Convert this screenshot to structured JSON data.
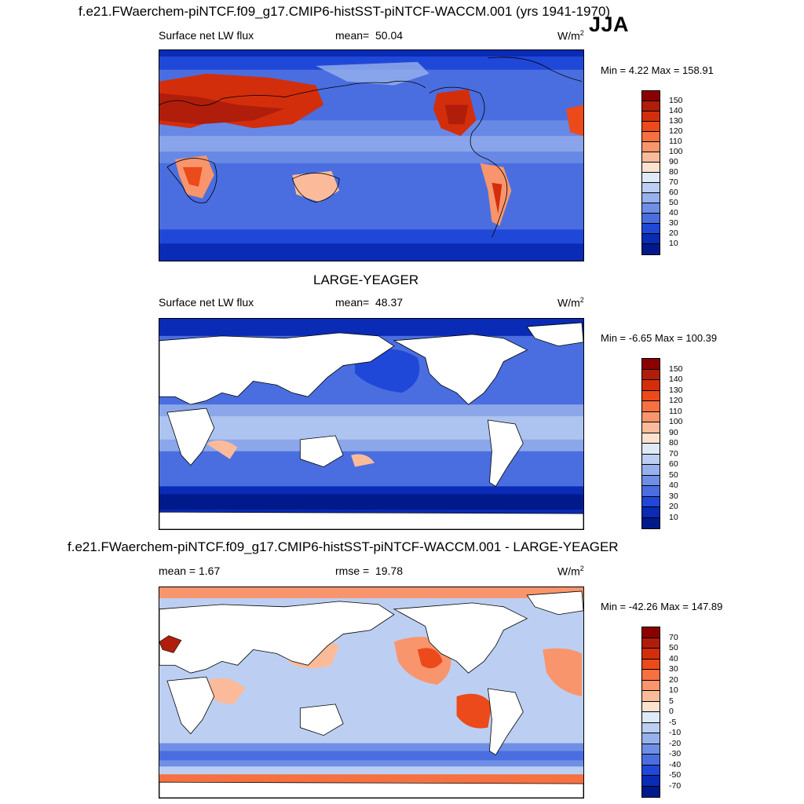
{
  "header": {
    "title_top": "f.e21.FWaerchem-piNTCF.f09_g17.CMIP6-histSST-piNTCF-WACCM.001 (yrs 1941-1970)",
    "season": "JJA",
    "title_mid": "LARGE-YEAGER",
    "title_bottom": "f.e21.FWaerchem-piNTCF.f09_g17.CMIP6-histSST-piNTCF-WACCM.001 - LARGE-YEAGER"
  },
  "panels": [
    {
      "id": "model",
      "variable": "Surface net LW flux",
      "stat_label": "mean=",
      "stat_value": "50.04",
      "units_base": "W/m",
      "units_exp": "2",
      "minmax": "Min =   4.22 Max = 158.91",
      "colorbar": {
        "levels": [
          "150",
          "140",
          "130",
          "120",
          "110",
          "100",
          "90",
          "80",
          "70",
          "60",
          "50",
          "40",
          "30",
          "20",
          "10"
        ],
        "colors": [
          "#8b0000",
          "#b01e0b",
          "#d32e0c",
          "#ec4a1a",
          "#f67040",
          "#f9956c",
          "#fbbb9b",
          "#fde2cf",
          "#dfeaf9",
          "#bccff2",
          "#97b1ec",
          "#6f8fe6",
          "#4a6edf",
          "#2048d8",
          "#0a2bb5",
          "#001a8c"
        ]
      },
      "map_style": "model"
    },
    {
      "id": "obs",
      "variable": "Surface net LW flux",
      "stat_label": "mean=",
      "stat_value": "48.37",
      "units_base": "W/m",
      "units_exp": "2",
      "minmax": "Min =  -6.65 Max = 100.39",
      "colorbar": {
        "levels": [
          "150",
          "140",
          "130",
          "120",
          "110",
          "100",
          "90",
          "80",
          "70",
          "60",
          "50",
          "40",
          "30",
          "20",
          "10"
        ],
        "colors": [
          "#8b0000",
          "#b01e0b",
          "#d32e0c",
          "#ec4a1a",
          "#f67040",
          "#f9956c",
          "#fbbb9b",
          "#fde2cf",
          "#dfeaf9",
          "#bccff2",
          "#97b1ec",
          "#6f8fe6",
          "#4a6edf",
          "#2048d8",
          "#0a2bb5",
          "#001a8c"
        ]
      },
      "map_style": "obs"
    },
    {
      "id": "diff",
      "variable": "mean =   1.67",
      "stat_label": "rmse =",
      "stat_value": "19.78",
      "units_base": "W/m",
      "units_exp": "2",
      "minmax": "Min = -42.26 Max = 147.89",
      "colorbar": {
        "levels": [
          "70",
          "50",
          "40",
          "30",
          "20",
          "10",
          "5",
          "0",
          "-5",
          "-10",
          "-20",
          "-30",
          "-40",
          "-50",
          "-70"
        ],
        "colors": [
          "#8b0000",
          "#b01e0b",
          "#d32e0c",
          "#ec4a1a",
          "#f67040",
          "#f9956c",
          "#fbbb9b",
          "#fde2cf",
          "#dfeaf9",
          "#bccff2",
          "#97b1ec",
          "#6f8fe6",
          "#4a6edf",
          "#2048d8",
          "#0a2bb5",
          "#001a8c"
        ]
      },
      "map_style": "diff"
    }
  ]
}
